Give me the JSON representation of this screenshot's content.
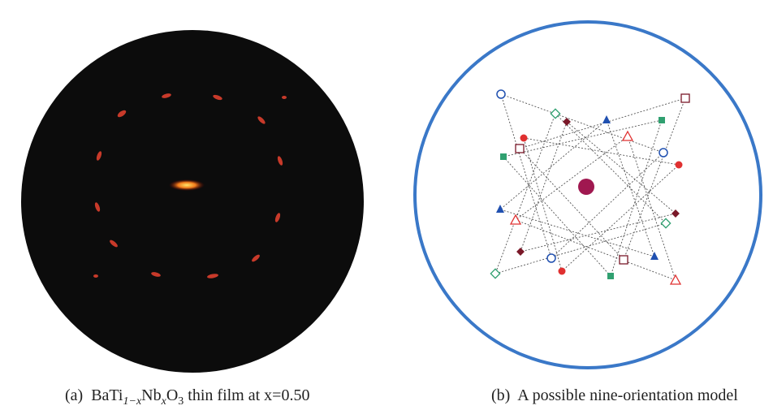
{
  "panels": [
    {
      "label": "(a)",
      "caption": [
        "BaTi",
        "1−x",
        "Nb",
        "x",
        "O",
        "3",
        " thin film at x=0.50"
      ]
    },
    {
      "label": "(b)",
      "caption": "A possible nine-orientation model"
    }
  ]
}
